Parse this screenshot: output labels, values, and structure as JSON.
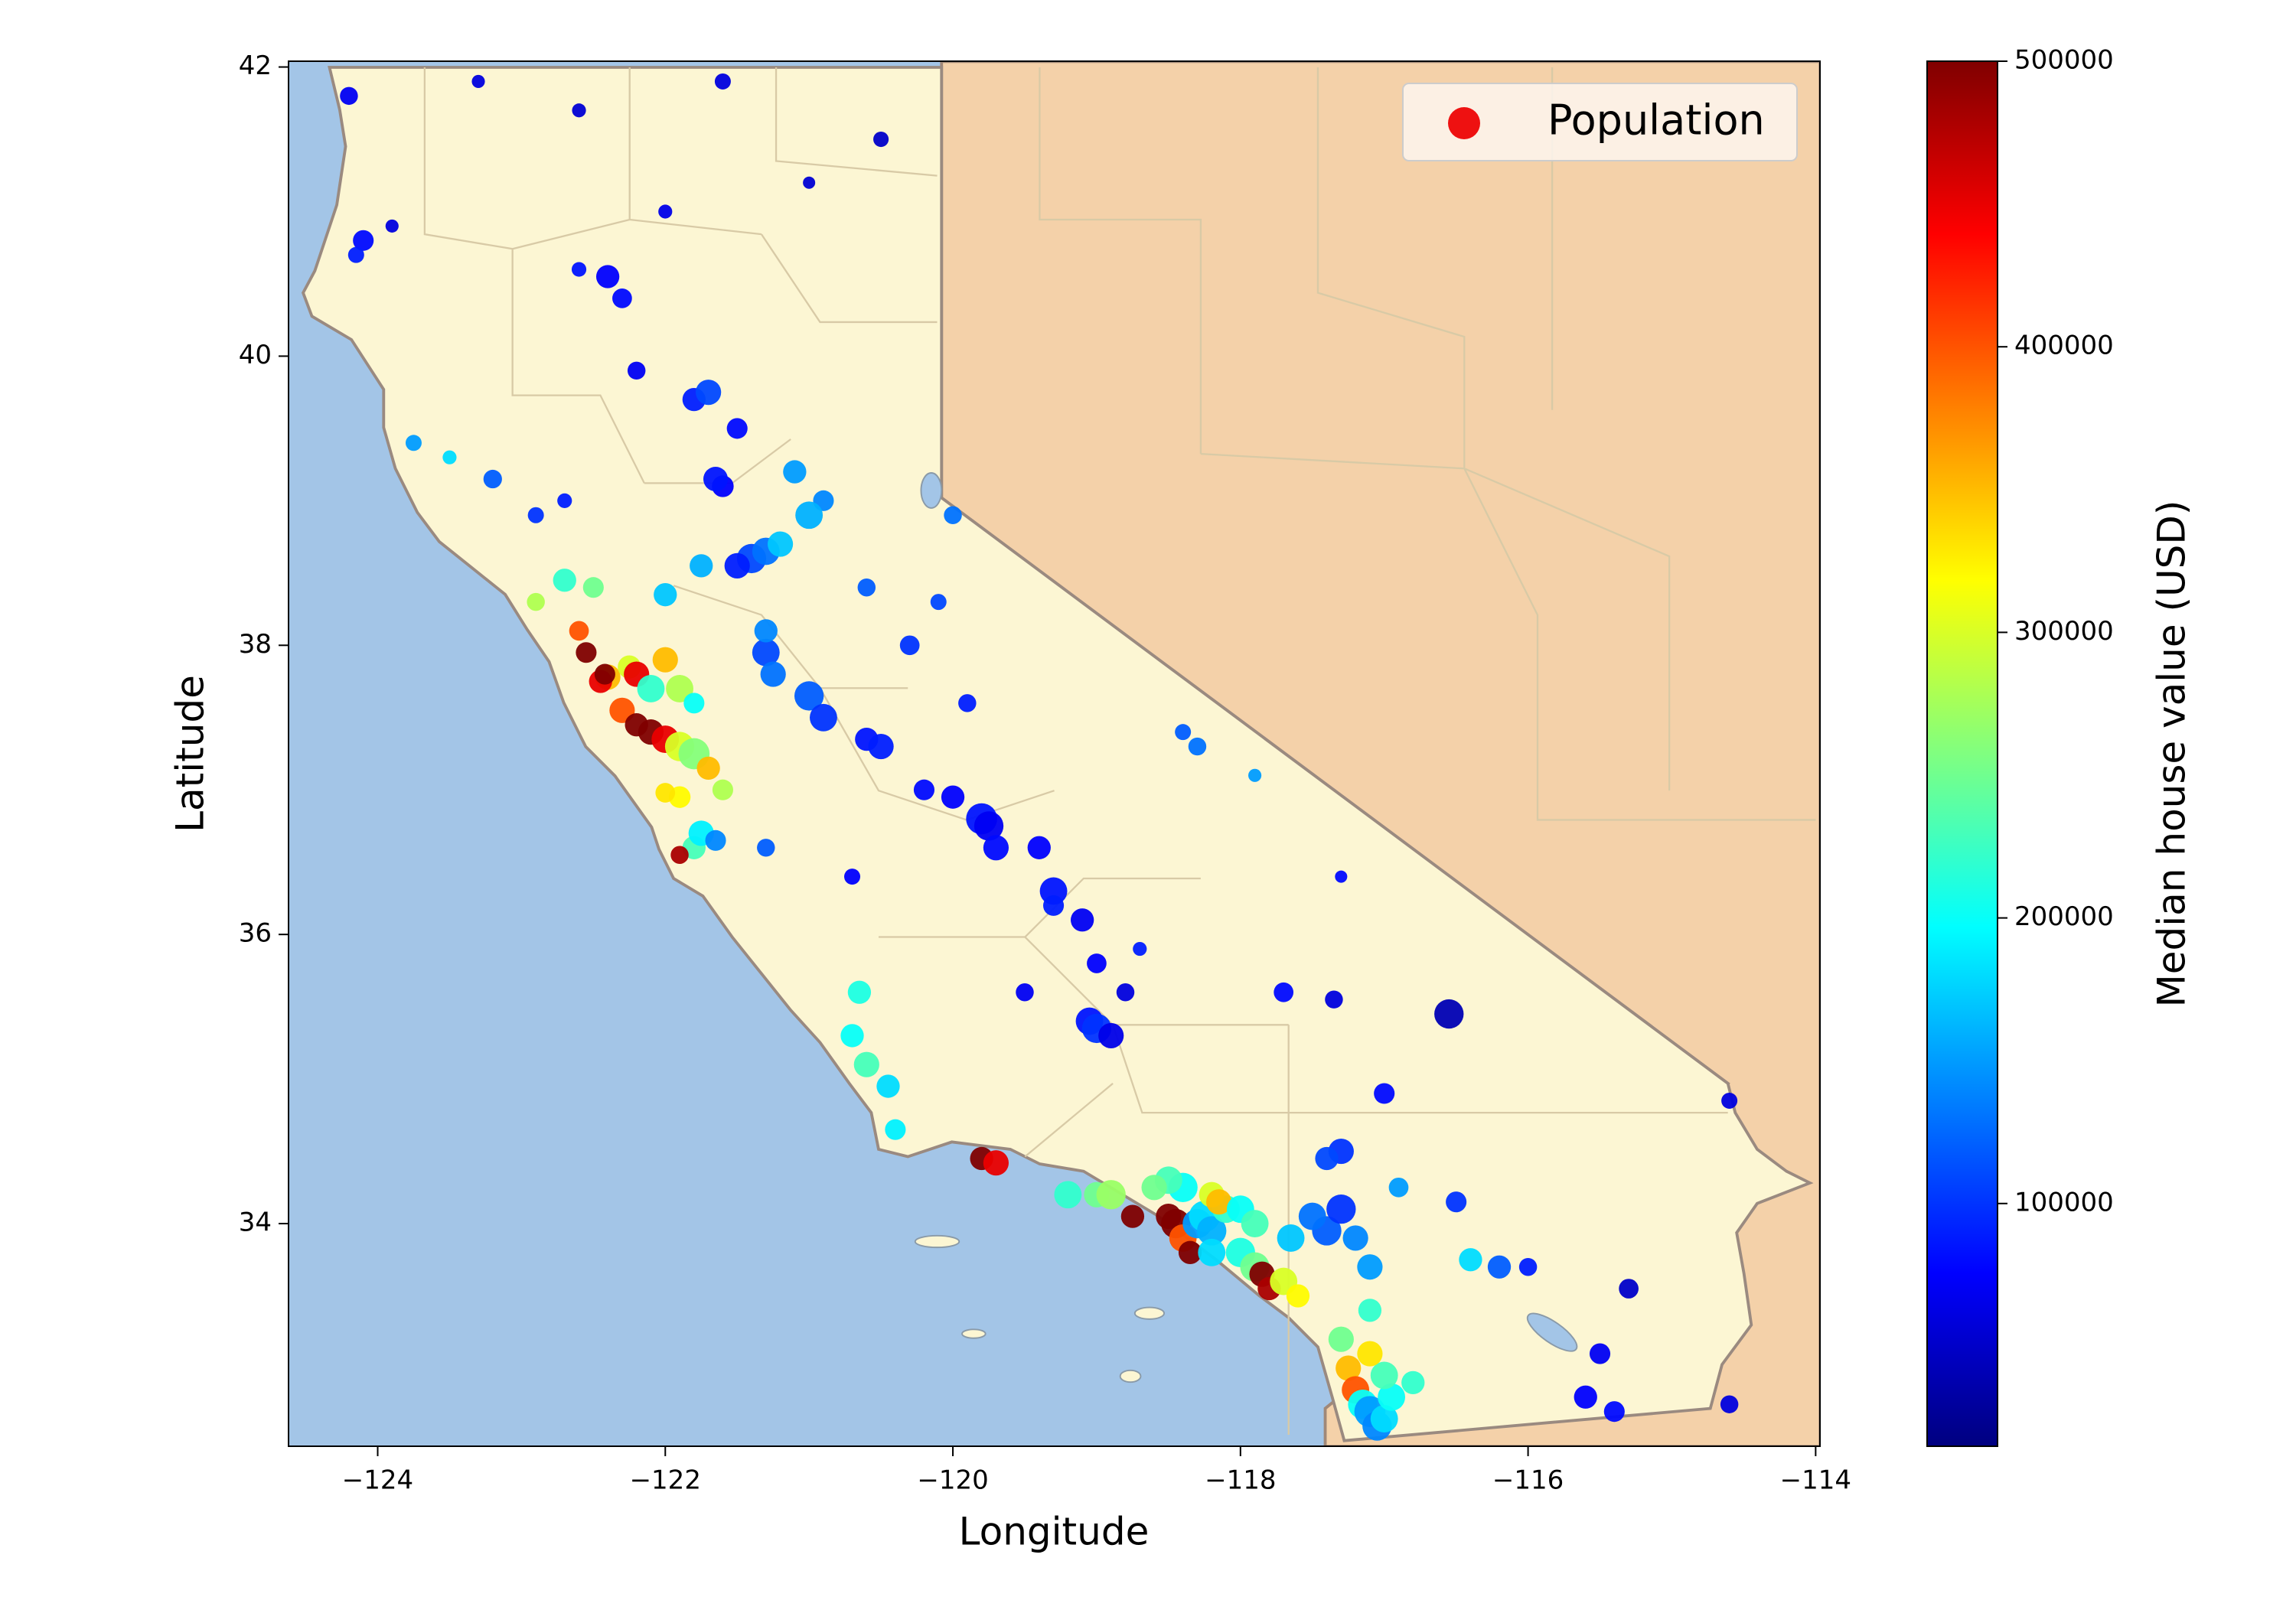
{
  "chart_data": {
    "type": "scatter",
    "x_label": "Longitude",
    "y_label": "Latitude",
    "colorbar_label": "Median house value (USD)",
    "colormap": "jet",
    "legend": "upper right",
    "xlim": [
      -124.62,
      -113.97
    ],
    "ylim": [
      32.46,
      42.04
    ],
    "clim": [
      15000,
      500000
    ],
    "xticks": [
      {
        "value": -124,
        "label": "−124"
      },
      {
        "value": -122,
        "label": "−122"
      },
      {
        "value": -120,
        "label": "−120"
      },
      {
        "value": -118,
        "label": "−118"
      },
      {
        "value": -116,
        "label": "−116"
      },
      {
        "value": -114,
        "label": "−114"
      }
    ],
    "yticks": [
      34,
      36,
      38,
      40,
      42
    ],
    "cticks": [
      100000,
      200000,
      300000,
      400000,
      500000
    ],
    "series": [
      {
        "name": "Population",
        "color": "#ee1111",
        "x": [
          -124.2,
          -124.1,
          -124.15,
          -123.9,
          -122.4,
          -122.3,
          -122.6,
          -121.6,
          -122.6,
          -120.5,
          -121.0,
          -123.3,
          -122.0,
          -121.8,
          -121.7,
          -121.5,
          -122.2,
          -121.6,
          -121.65,
          -122.9,
          -122.7,
          -123.2,
          -123.75,
          -123.5,
          -121.1,
          -120.9,
          -121.0,
          -120.0,
          -121.4,
          -121.3,
          -121.5,
          -121.2,
          -121.75,
          -122.0,
          -122.5,
          -122.7,
          -122.9,
          -122.6,
          -122.55,
          -122.4,
          -122.45,
          -122.42,
          -122.25,
          -122.2,
          -122.1,
          -122.0,
          -121.9,
          -122.3,
          -122.2,
          -122.1,
          -122.0,
          -121.9,
          -121.8,
          -121.7,
          -121.6,
          -121.9,
          -122.0,
          -121.8,
          -121.75,
          -121.9,
          -121.65,
          -121.3,
          -121.8,
          -121.3,
          -121.25,
          -121.0,
          -121.3,
          -120.9,
          -120.6,
          -120.5,
          -120.2,
          -120.0,
          -119.8,
          -119.75,
          -119.7,
          -119.4,
          -119.3,
          -119.1,
          -119.3,
          -119.0,
          -119.05,
          -119.0,
          -118.9,
          -119.5,
          -118.8,
          -117.7,
          -117.35,
          -116.55,
          -117.0,
          -117.3,
          -117.4,
          -116.9,
          -116.5,
          -116.2,
          -116.4,
          -116.0,
          -115.5,
          -115.6,
          -115.4,
          -114.6,
          -114.6,
          -115.3,
          -120.7,
          -120.6,
          -120.45,
          -120.65,
          -120.4,
          -119.8,
          -119.7,
          -119.2,
          -119.0,
          -118.9,
          -118.75,
          -118.5,
          -118.45,
          -118.4,
          -118.3,
          -118.25,
          -118.2,
          -118.1,
          -118.2,
          -118.4,
          -118.5,
          -118.6,
          -118.15,
          -118.0,
          -117.9,
          -118.35,
          -118.2,
          -118.0,
          -117.9,
          -117.85,
          -117.8,
          -117.7,
          -117.6,
          -117.65,
          -117.4,
          -117.3,
          -117.5,
          -117.2,
          -117.1,
          -117.1,
          -117.3,
          -117.25,
          -117.2,
          -117.15,
          -117.1,
          -117.05,
          -117.0,
          -116.95,
          -117.0,
          -116.8,
          -117.1,
          -120.3,
          -120.6,
          -120.1,
          -119.9,
          -118.4,
          -118.3,
          -117.9,
          -117.3,
          -120.7,
          -118.7
        ],
        "y": [
          41.8,
          40.8,
          40.7,
          40.9,
          40.55,
          40.4,
          40.6,
          41.9,
          41.7,
          41.5,
          41.2,
          41.9,
          41.0,
          39.7,
          39.75,
          39.5,
          39.9,
          39.1,
          39.15,
          38.9,
          39.0,
          39.15,
          39.4,
          39.3,
          39.2,
          39.0,
          38.9,
          38.9,
          38.6,
          38.65,
          38.55,
          38.7,
          38.55,
          38.35,
          38.4,
          38.45,
          38.3,
          38.1,
          37.95,
          37.78,
          37.75,
          37.8,
          37.85,
          37.8,
          37.7,
          37.9,
          37.7,
          37.55,
          37.45,
          37.4,
          37.35,
          37.3,
          37.25,
          37.15,
          37.0,
          36.95,
          36.98,
          36.6,
          36.7,
          36.55,
          36.65,
          36.6,
          37.6,
          37.95,
          37.8,
          37.65,
          38.1,
          37.5,
          37.35,
          37.3,
          37.0,
          36.95,
          36.8,
          36.75,
          36.6,
          36.6,
          36.3,
          36.1,
          36.2,
          35.8,
          35.4,
          35.35,
          35.3,
          35.6,
          35.6,
          35.6,
          35.55,
          35.45,
          34.9,
          34.5,
          34.45,
          34.25,
          34.15,
          33.7,
          33.75,
          33.7,
          33.1,
          32.8,
          32.7,
          32.75,
          34.85,
          33.55,
          35.3,
          35.1,
          34.95,
          35.6,
          34.65,
          34.45,
          34.42,
          34.2,
          34.2,
          34.2,
          34.05,
          34.05,
          34.0,
          33.9,
          34.0,
          34.05,
          33.95,
          34.1,
          34.2,
          34.25,
          34.3,
          34.25,
          34.15,
          34.1,
          34.0,
          33.8,
          33.8,
          33.8,
          33.7,
          33.65,
          33.55,
          33.6,
          33.5,
          33.9,
          33.95,
          34.1,
          34.05,
          33.9,
          33.7,
          33.4,
          33.2,
          33.0,
          32.85,
          32.75,
          32.7,
          32.6,
          32.65,
          32.8,
          32.95,
          32.9,
          33.1,
          38.0,
          38.4,
          38.3,
          37.6,
          37.4,
          37.3,
          37.1,
          36.4,
          36.4,
          35.9
        ],
        "sizes": [
          1500,
          2000,
          1200,
          800,
          2500,
          1800,
          1000,
          1200,
          900,
          1100,
          700,
          800,
          900,
          2500,
          3000,
          2000,
          1500,
          2200,
          2800,
          1200,
          1000,
          1600,
          1200,
          900,
          2500,
          2000,
          3500,
          1500,
          4000,
          3500,
          3000,
          3000,
          2500,
          2500,
          2000,
          2500,
          1500,
          1800,
          2000,
          3000,
          2500,
          2000,
          2500,
          3000,
          3500,
          3000,
          3500,
          3000,
          2500,
          3000,
          3500,
          4000,
          4500,
          2500,
          2000,
          2200,
          1800,
          2500,
          3000,
          1500,
          2000,
          1500,
          2000,
          3500,
          3000,
          4000,
          2500,
          3500,
          2500,
          3000,
          2000,
          2500,
          4500,
          4000,
          3000,
          2500,
          3500,
          2500,
          2000,
          1800,
          3500,
          4000,
          3000,
          1500,
          1500,
          1800,
          1500,
          4000,
          2000,
          3000,
          2500,
          1800,
          2000,
          2500,
          2500,
          1500,
          2000,
          2500,
          2000,
          1500,
          1200,
          1800,
          2500,
          3000,
          2500,
          2500,
          2000,
          2500,
          3000,
          3500,
          3000,
          4000,
          2500,
          3000,
          4000,
          3500,
          4000,
          4500,
          4000,
          3500,
          3000,
          4000,
          3500,
          3000,
          3000,
          3500,
          3500,
          2500,
          3500,
          4000,
          4000,
          3000,
          2500,
          3500,
          2500,
          3500,
          4000,
          4000,
          3500,
          3000,
          3000,
          2500,
          3000,
          3000,
          3500,
          4000,
          4500,
          4000,
          3500,
          3500,
          3500,
          2500,
          3000,
          1800,
          1500,
          1200,
          1500,
          1200,
          1500,
          800,
          700,
          1200,
          900
        ],
        "values": [
          70000,
          80000,
          90000,
          60000,
          75000,
          80000,
          85000,
          60000,
          55000,
          50000,
          55000,
          60000,
          65000,
          90000,
          110000,
          80000,
          70000,
          75000,
          85000,
          100000,
          90000,
          120000,
          150000,
          180000,
          150000,
          140000,
          160000,
          130000,
          110000,
          130000,
          90000,
          170000,
          160000,
          170000,
          250000,
          220000,
          280000,
          400000,
          500000,
          350000,
          450000,
          500000,
          300000,
          450000,
          220000,
          350000,
          280000,
          400000,
          500000,
          500000,
          450000,
          300000,
          260000,
          350000,
          280000,
          320000,
          330000,
          230000,
          190000,
          480000,
          140000,
          120000,
          200000,
          110000,
          130000,
          120000,
          140000,
          100000,
          85000,
          90000,
          80000,
          75000,
          85000,
          70000,
          80000,
          75000,
          85000,
          70000,
          90000,
          75000,
          85000,
          100000,
          65000,
          70000,
          60000,
          80000,
          60000,
          40000,
          80000,
          100000,
          110000,
          150000,
          100000,
          120000,
          180000,
          90000,
          70000,
          75000,
          80000,
          60000,
          60000,
          50000,
          200000,
          230000,
          180000,
          210000,
          190000,
          500000,
          450000,
          220000,
          250000,
          270000,
          500000,
          500000,
          500000,
          400000,
          150000,
          180000,
          160000,
          220000,
          300000,
          200000,
          230000,
          250000,
          350000,
          200000,
          230000,
          500000,
          180000,
          210000,
          250000,
          500000,
          480000,
          300000,
          320000,
          170000,
          120000,
          100000,
          130000,
          140000,
          150000,
          220000,
          250000,
          350000,
          400000,
          200000,
          150000,
          140000,
          180000,
          200000,
          230000,
          220000,
          330000,
          100000,
          120000,
          110000,
          90000,
          120000,
          130000,
          150000,
          80000,
          75000,
          90000
        ]
      }
    ]
  }
}
